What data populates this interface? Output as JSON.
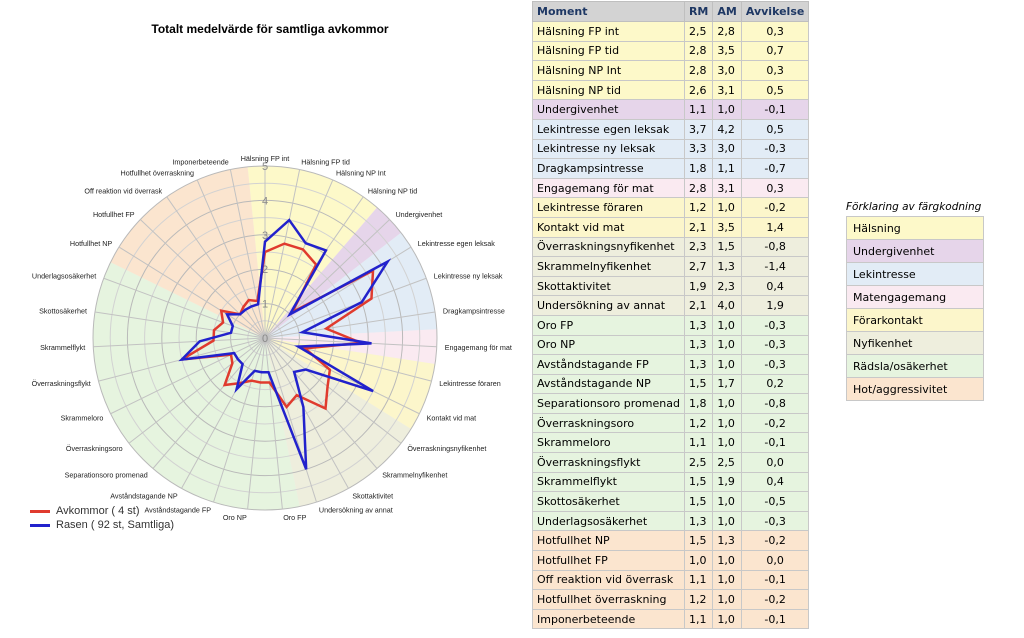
{
  "colors": {
    "halsning": "#fdf9c9",
    "undergivenhet": "#e6d5ea",
    "lekintresse": "#e2ecf6",
    "matengagemang": "#faeaf1",
    "forarkontakt": "#fcf6cb",
    "nyfikenhet": "#eeeedd",
    "radsla": "#e6f4df",
    "hot": "#fbe5cf",
    "series_avkommor": "#e03b2e",
    "series_rasen": "#2222cc",
    "header_bg": "#d3d3d3",
    "header_text": "#1f3864"
  },
  "chart_data": {
    "type": "radar",
    "title": "Totalt medelvärde för samtliga avkommor",
    "scale": {
      "min": 0,
      "max": 5,
      "ticks": [
        "0",
        "1",
        "2",
        "3",
        "4",
        "5"
      ]
    },
    "categories": [
      "Hälsning FP int",
      "Hälsning FP tid",
      "Hälsning NP Int",
      "Hälsning NP tid",
      "Undergivenhet",
      "Lekintresse egen leksak",
      "Lekintresse ny leksak",
      "Dragkampsintresse",
      "Engagemang för mat",
      "Lekintresse föraren",
      "Kontakt vid mat",
      "Överraskningsnyfikenhet",
      "Skrammelnyfikenhet",
      "Skottaktivitet",
      "Undersökning av annat",
      "Oro FP",
      "Oro NP",
      "Avståndstagande FP",
      "Avståndstagande NP",
      "Separationsoro promenad",
      "Överraskningsoro",
      "Skrammeloro",
      "Överraskningsflykt",
      "Skrammelflykt",
      "Skottosäkerhet",
      "Underlagsosäkerhet",
      "Hotfullhet NP",
      "Hotfullhet FP",
      "Off reaktion vid överrask",
      "Hotfullhet överraskning",
      "Imponerbeteende"
    ],
    "groups": [
      {
        "key": "halsning",
        "start": 0,
        "end": 3
      },
      {
        "key": "undergivenhet",
        "start": 4,
        "end": 4
      },
      {
        "key": "lekintresse",
        "start": 5,
        "end": 7
      },
      {
        "key": "matengagemang",
        "start": 8,
        "end": 8
      },
      {
        "key": "forarkontakt",
        "start": 9,
        "end": 10
      },
      {
        "key": "nyfikenhet",
        "start": 11,
        "end": 14
      },
      {
        "key": "radsla",
        "start": 15,
        "end": 25
      },
      {
        "key": "hot",
        "start": 26,
        "end": 30
      }
    ],
    "series": [
      {
        "name": "Avkommor ( 4 st)",
        "color_key": "series_avkommor",
        "values": [
          2.5,
          2.8,
          2.8,
          2.6,
          1.1,
          3.7,
          3.3,
          1.8,
          2.8,
          1.2,
          2.1,
          2.3,
          2.7,
          1.9,
          2.1,
          1.3,
          1.3,
          1.3,
          1.5,
          1.8,
          1.2,
          1.1,
          2.5,
          1.5,
          1.5,
          1.3,
          1.5,
          1.0,
          1.1,
          1.2,
          1.1
        ]
      },
      {
        "name": "Rasen ( 92 st, Samtliga)",
        "color_key": "series_rasen",
        "values": [
          2.8,
          3.5,
          3.0,
          3.1,
          1.0,
          4.2,
          3.0,
          1.1,
          3.1,
          1.0,
          3.5,
          1.5,
          1.3,
          2.3,
          4.0,
          1.0,
          1.0,
          1.0,
          1.7,
          1.0,
          1.0,
          1.0,
          2.5,
          1.9,
          1.0,
          1.0,
          1.3,
          1.0,
          1.0,
          1.0,
          1.0
        ]
      }
    ],
    "legend_position": "bottom-left"
  },
  "table": {
    "headers": [
      "Moment",
      "RM",
      "AM",
      "Avvikelse"
    ],
    "rows": [
      {
        "moment": "Hälsning FP int",
        "rm": "2,5",
        "am": "2,8",
        "dev": "0,3",
        "group": "halsning"
      },
      {
        "moment": "Hälsning FP tid",
        "rm": "2,8",
        "am": "3,5",
        "dev": "0,7",
        "group": "halsning"
      },
      {
        "moment": "Hälsning NP Int",
        "rm": "2,8",
        "am": "3,0",
        "dev": "0,3",
        "group": "halsning"
      },
      {
        "moment": "Hälsning NP tid",
        "rm": "2,6",
        "am": "3,1",
        "dev": "0,5",
        "group": "halsning"
      },
      {
        "moment": "Undergivenhet",
        "rm": "1,1",
        "am": "1,0",
        "dev": "-0,1",
        "group": "undergivenhet"
      },
      {
        "moment": "Lekintresse egen leksak",
        "rm": "3,7",
        "am": "4,2",
        "dev": "0,5",
        "group": "lekintresse"
      },
      {
        "moment": "Lekintresse ny leksak",
        "rm": "3,3",
        "am": "3,0",
        "dev": "-0,3",
        "group": "lekintresse"
      },
      {
        "moment": "Dragkampsintresse",
        "rm": "1,8",
        "am": "1,1",
        "dev": "-0,7",
        "group": "lekintresse"
      },
      {
        "moment": "Engagemang för mat",
        "rm": "2,8",
        "am": "3,1",
        "dev": "0,3",
        "group": "matengagemang"
      },
      {
        "moment": "Lekintresse föraren",
        "rm": "1,2",
        "am": "1,0",
        "dev": "-0,2",
        "group": "forarkontakt"
      },
      {
        "moment": "Kontakt vid mat",
        "rm": "2,1",
        "am": "3,5",
        "dev": "1,4",
        "group": "forarkontakt"
      },
      {
        "moment": "Överraskningsnyfikenhet",
        "rm": "2,3",
        "am": "1,5",
        "dev": "-0,8",
        "group": "nyfikenhet"
      },
      {
        "moment": "Skrammelnyfikenhet",
        "rm": "2,7",
        "am": "1,3",
        "dev": "-1,4",
        "group": "nyfikenhet"
      },
      {
        "moment": "Skottaktivitet",
        "rm": "1,9",
        "am": "2,3",
        "dev": "0,4",
        "group": "nyfikenhet"
      },
      {
        "moment": "Undersökning av annat",
        "rm": "2,1",
        "am": "4,0",
        "dev": "1,9",
        "group": "nyfikenhet"
      },
      {
        "moment": "Oro FP",
        "rm": "1,3",
        "am": "1,0",
        "dev": "-0,3",
        "group": "radsla"
      },
      {
        "moment": "Oro NP",
        "rm": "1,3",
        "am": "1,0",
        "dev": "-0,3",
        "group": "radsla"
      },
      {
        "moment": "Avståndstagande FP",
        "rm": "1,3",
        "am": "1,0",
        "dev": "-0,3",
        "group": "radsla"
      },
      {
        "moment": "Avståndstagande NP",
        "rm": "1,5",
        "am": "1,7",
        "dev": "0,2",
        "group": "radsla"
      },
      {
        "moment": "Separationsoro promenad",
        "rm": "1,8",
        "am": "1,0",
        "dev": "-0,8",
        "group": "radsla"
      },
      {
        "moment": "Överraskningsoro",
        "rm": "1,2",
        "am": "1,0",
        "dev": "-0,2",
        "group": "radsla"
      },
      {
        "moment": "Skrammeloro",
        "rm": "1,1",
        "am": "1,0",
        "dev": "-0,1",
        "group": "radsla"
      },
      {
        "moment": "Överraskningsflykt",
        "rm": "2,5",
        "am": "2,5",
        "dev": "0,0",
        "group": "radsla"
      },
      {
        "moment": "Skrammelflykt",
        "rm": "1,5",
        "am": "1,9",
        "dev": "0,4",
        "group": "radsla"
      },
      {
        "moment": "Skottosäkerhet",
        "rm": "1,5",
        "am": "1,0",
        "dev": "-0,5",
        "group": "radsla"
      },
      {
        "moment": "Underlagsosäkerhet",
        "rm": "1,3",
        "am": "1,0",
        "dev": "-0,3",
        "group": "radsla"
      },
      {
        "moment": "Hotfullhet NP",
        "rm": "1,5",
        "am": "1,3",
        "dev": "-0,2",
        "group": "hot"
      },
      {
        "moment": "Hotfullhet FP",
        "rm": "1,0",
        "am": "1,0",
        "dev": "0,0",
        "group": "hot"
      },
      {
        "moment": "Off reaktion vid överrask",
        "rm": "1,1",
        "am": "1,0",
        "dev": "-0,1",
        "group": "hot"
      },
      {
        "moment": "Hotfullhet överraskning",
        "rm": "1,2",
        "am": "1,0",
        "dev": "-0,2",
        "group": "hot"
      },
      {
        "moment": "Imponerbeteende",
        "rm": "1,1",
        "am": "1,0",
        "dev": "-0,1",
        "group": "hot"
      }
    ]
  },
  "color_key": {
    "title": "Förklaring av färgkodning",
    "items": [
      {
        "label": "Hälsning",
        "group": "halsning"
      },
      {
        "label": "Undergivenhet",
        "group": "undergivenhet"
      },
      {
        "label": "Lekintresse",
        "group": "lekintresse"
      },
      {
        "label": "Matengagemang",
        "group": "matengagemang"
      },
      {
        "label": "Förarkontakt",
        "group": "forarkontakt"
      },
      {
        "label": "Nyfikenhet",
        "group": "nyfikenhet"
      },
      {
        "label": "Rädsla/osäkerhet",
        "group": "radsla"
      },
      {
        "label": "Hot/aggressivitet",
        "group": "hot"
      }
    ]
  }
}
